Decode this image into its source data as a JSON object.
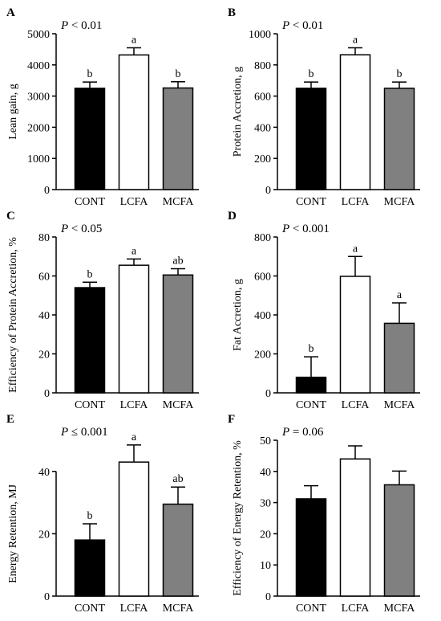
{
  "chart_data": [
    {
      "type": "bar",
      "panel": "A",
      "p_label": "P",
      "p_rest": " < 0.01",
      "ylabel": "Lean gain, g",
      "ylim": [
        0,
        5000
      ],
      "yticks": [
        0,
        1000,
        2000,
        3000,
        4000,
        5000
      ],
      "categories": [
        "CONT",
        "LCFA",
        "MCFA"
      ],
      "values": [
        3250,
        4320,
        3260
      ],
      "errors": [
        200,
        230,
        200
      ],
      "letters": [
        "b",
        "a",
        "b"
      ],
      "colors": [
        "#000000",
        "#ffffff",
        "#808080"
      ]
    },
    {
      "type": "bar",
      "panel": "B",
      "p_label": "P",
      "p_rest": " < 0.01",
      "ylabel": "Protein Accretion, g",
      "ylim": [
        0,
        1000
      ],
      "yticks": [
        0,
        200,
        400,
        600,
        800,
        1000
      ],
      "categories": [
        "CONT",
        "LCFA",
        "MCFA"
      ],
      "values": [
        650,
        865,
        650
      ],
      "errors": [
        40,
        45,
        40
      ],
      "letters": [
        "b",
        "a",
        "b"
      ],
      "colors": [
        "#000000",
        "#ffffff",
        "#808080"
      ]
    },
    {
      "type": "bar",
      "panel": "C",
      "p_label": "P",
      "p_rest": " < 0.05",
      "ylabel": "Efficiency of Protein Accretion, %",
      "ylim": [
        0,
        80
      ],
      "yticks": [
        0,
        20,
        40,
        60,
        80
      ],
      "categories": [
        "CONT",
        "LCFA",
        "MCFA"
      ],
      "values": [
        54,
        65.5,
        60.5
      ],
      "errors": [
        2.8,
        3.2,
        3.2
      ],
      "letters": [
        "b",
        "a",
        "ab"
      ],
      "colors": [
        "#000000",
        "#ffffff",
        "#808080"
      ]
    },
    {
      "type": "bar",
      "panel": "D",
      "p_label": "P",
      "p_rest": " < 0.001",
      "ylabel": "Fat Accretion, g",
      "ylim": [
        0,
        800
      ],
      "yticks": [
        0,
        200,
        400,
        600,
        800
      ],
      "categories": [
        "CONT",
        "LCFA",
        "MCFA"
      ],
      "values": [
        80,
        598,
        357
      ],
      "errors": [
        105,
        102,
        105
      ],
      "letters": [
        "b",
        "a",
        "a"
      ],
      "colors": [
        "#000000",
        "#ffffff",
        "#808080"
      ]
    },
    {
      "type": "bar",
      "panel": "E",
      "p_label": "P",
      "p_rest": " ≤ 0.001",
      "ylabel": "Energy Retention, MJ",
      "ylim": [
        0,
        50
      ],
      "yticks": [
        0,
        20,
        40
      ],
      "categories": [
        "CONT",
        "LCFA",
        "MCFA"
      ],
      "values": [
        18,
        43,
        29.5
      ],
      "errors": [
        5.2,
        5.5,
        5.5
      ],
      "letters": [
        "b",
        "a",
        "ab"
      ],
      "colors": [
        "#000000",
        "#ffffff",
        "#808080"
      ]
    },
    {
      "type": "bar",
      "panel": "F",
      "p_label": "P",
      "p_rest": " = 0.06",
      "ylabel": "Efficiency of Energy Retention, %",
      "ylim": [
        0,
        50
      ],
      "yticks": [
        0,
        10,
        20,
        30,
        40,
        50
      ],
      "categories": [
        "CONT",
        "LCFA",
        "MCFA"
      ],
      "values": [
        31.2,
        44,
        35.7
      ],
      "errors": [
        4.2,
        4.2,
        4.4
      ],
      "letters": [
        "",
        "",
        ""
      ],
      "colors": [
        "#000000",
        "#ffffff",
        "#808080"
      ]
    }
  ]
}
